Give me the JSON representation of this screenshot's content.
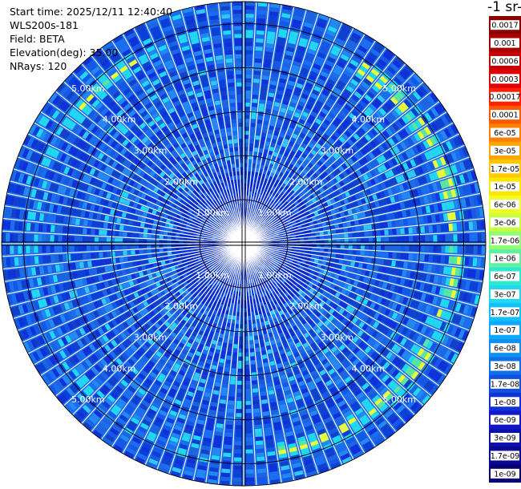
{
  "chart_data": {
    "type": "heatmap",
    "info": {
      "start_time": "Start time: 2025/12/11 12:40:40",
      "instrument": "WLS200s-181",
      "field": "Field: BETA",
      "elevation": "Elevation(deg): 35.00",
      "nrays": "NRays: 120"
    },
    "colorbar_title": "-1 sr-",
    "colorbar": {
      "labels": [
        "0.0017",
        "0.001",
        "0.0006",
        "0.0003",
        "0.00017",
        "0.0001",
        "6e-05",
        "3e-05",
        "1.7e-05",
        "1e-05",
        "6e-06",
        "3e-06",
        "1.7e-06",
        "1e-06",
        "6e-07",
        "3e-07",
        "1.7e-07",
        "1e-07",
        "6e-08",
        "3e-08",
        "1.7e-08",
        "1e-08",
        "6e-09",
        "3e-09",
        "1.7e-09",
        "1e-09"
      ],
      "colors": [
        "#8b0000",
        "#a80000",
        "#c80000",
        "#e00000",
        "#ff2000",
        "#ff5a00",
        "#ff8000",
        "#ffa500",
        "#ffc800",
        "#ffe600",
        "#f0ff20",
        "#c8ff40",
        "#90ff70",
        "#60f0a0",
        "#30e8d0",
        "#20d8f0",
        "#10c0ff",
        "#10a8ff",
        "#1090f0",
        "#1070e8",
        "#1050e0",
        "#1030d8",
        "#1018c8",
        "#0a10a8",
        "#080890",
        "#060070"
      ]
    },
    "range_rings_km": [
      1,
      2,
      3,
      4,
      5
    ],
    "range_labels": [
      "1.00km",
      "2.00km",
      "3.00km",
      "4.00km",
      "5.00km"
    ],
    "max_range_km": 5.5,
    "n_rays": 120,
    "colors_main": {
      "far_blue": "#1e72e8",
      "deep_blue": "#1030d8",
      "cyan": "#22d8f0",
      "green": "#5ae6a0",
      "yellow": "#e8ff3a"
    }
  }
}
